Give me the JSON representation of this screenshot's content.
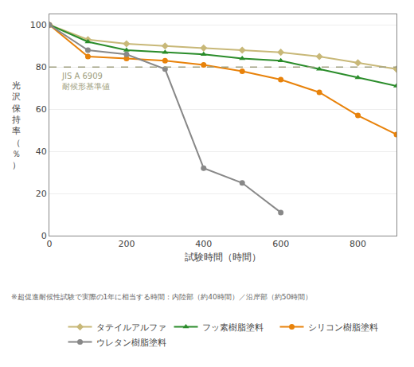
{
  "chart_data": {
    "type": "line",
    "xlabel": "試験時間（時間）",
    "ylabel": "光\n沢\n保\n持\n率\n（\n％\n）",
    "xlim": [
      0,
      900
    ],
    "ylim": [
      0,
      105
    ],
    "xticks": [
      0,
      200,
      400,
      600,
      800
    ],
    "yticks": [
      0,
      20,
      40,
      60,
      80,
      100
    ],
    "grid": true,
    "legend": "bottom",
    "reference_lines": [
      {
        "y": 80,
        "label": "JIS A 6909\n耐候形基準値",
        "color": "#a0a080",
        "line_style": "dashed"
      }
    ],
    "footnote": "※超促進耐候性試験で実際の1年に相当する時間：内陸部（約40時間）／沿岸部（約50時間）",
    "series": [
      {
        "name": "タテイルアルファ",
        "color": "#c8b878",
        "marker": "diamond",
        "x": [
          0,
          100,
          200,
          300,
          400,
          500,
          600,
          700,
          800,
          900
        ],
        "values": [
          100,
          93,
          91,
          90,
          89,
          88,
          87,
          85,
          82,
          79
        ]
      },
      {
        "name": "フッ素樹脂塗料",
        "color": "#2a8c2a",
        "marker": "triangle-up",
        "x": [
          0,
          100,
          200,
          300,
          400,
          500,
          600,
          700,
          800,
          900
        ],
        "values": [
          100,
          92,
          88,
          87,
          86,
          84,
          83,
          79,
          75,
          71
        ]
      },
      {
        "name": "シリコン樹脂塗料",
        "color": "#e8820a",
        "marker": "circle",
        "x": [
          0,
          100,
          200,
          300,
          400,
          500,
          600,
          700,
          800,
          900
        ],
        "values": [
          100,
          85,
          84,
          83,
          81,
          78,
          74,
          68,
          57,
          48
        ]
      },
      {
        "name": "ウレタン樹脂塗料",
        "color": "#888888",
        "marker": "circle",
        "x": [
          0,
          100,
          200,
          300,
          400,
          500,
          600
        ],
        "values": [
          100,
          88,
          86,
          79,
          32,
          25,
          11
        ]
      }
    ]
  }
}
